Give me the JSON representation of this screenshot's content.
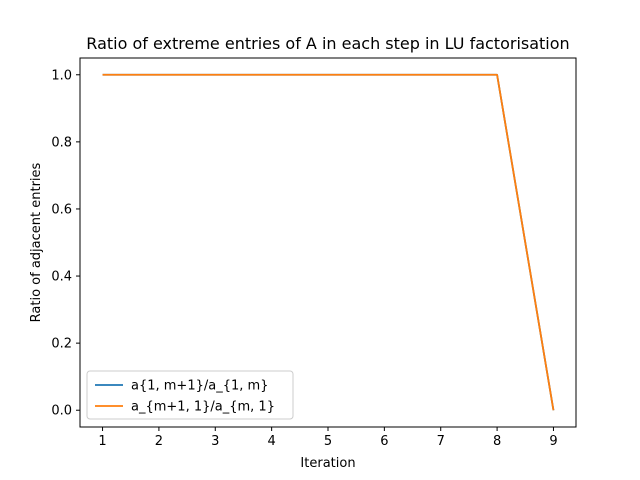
{
  "chart_data": {
    "type": "line",
    "title": "Ratio of extreme entries of A in each step in LU factorisation",
    "xlabel": "Iteration",
    "ylabel": "Ratio of adjacent entries",
    "xlim": [
      0.6,
      9.4
    ],
    "ylim": [
      -0.05,
      1.05
    ],
    "xticks": [
      1,
      2,
      3,
      4,
      5,
      6,
      7,
      8,
      9
    ],
    "yticks": [
      0.0,
      0.2,
      0.4,
      0.6,
      0.8,
      1.0
    ],
    "ytick_labels": [
      "0.0",
      "0.2",
      "0.4",
      "0.6",
      "0.8",
      "1.0"
    ],
    "grid": false,
    "legend_position": "lower-left",
    "x": [
      1,
      2,
      3,
      4,
      5,
      6,
      7,
      8,
      9
    ],
    "series": [
      {
        "name": "a{1, m+1}/a_{1, m}",
        "color": "#1f77b4",
        "values": [
          1,
          1,
          1,
          1,
          1,
          1,
          1,
          1,
          0
        ]
      },
      {
        "name": "a_{m+1, 1}/a_{m, 1}",
        "color": "#ff7f0e",
        "values": [
          1,
          1,
          1,
          1,
          1,
          1,
          1,
          1,
          0
        ]
      }
    ]
  }
}
